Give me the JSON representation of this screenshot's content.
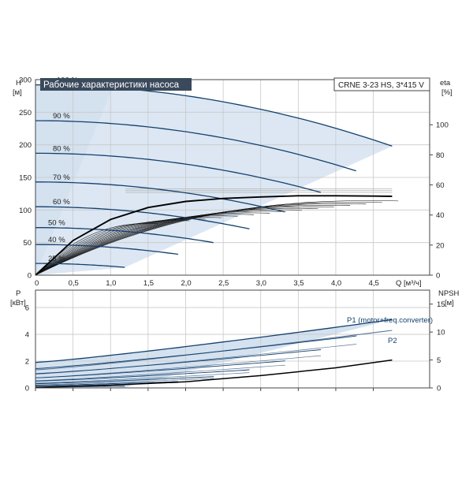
{
  "title": "Рабочие характеристики насоса",
  "model": "CRNE 3-23 HS, 3*415 V",
  "colors": {
    "navy": "#14406e",
    "band": "#c5d7ea",
    "title_bg": "#3a4a5c"
  },
  "chart_data": [
    {
      "type": "line",
      "name": "head",
      "ylabel_left": [
        "H",
        "[м]"
      ],
      "ylabel_right": [
        "eta",
        "[%]"
      ],
      "xlabel": "Q [м³/ч]",
      "xlim": [
        0,
        5.25
      ],
      "ylim": [
        0,
        300
      ],
      "ylim_right": [
        0,
        130
      ],
      "xticks": [
        0,
        0.5,
        1.0,
        1.5,
        2.0,
        2.5,
        3.0,
        3.5,
        4.0,
        4.5
      ],
      "xtick_labels": [
        "0",
        "0,5",
        "1,0",
        "1,5",
        "2,0",
        "2,5",
        "3,0",
        "3,5",
        "4,0",
        "4,5"
      ],
      "yticks": [
        0,
        50,
        100,
        150,
        200,
        250,
        300
      ],
      "yticks_right": [
        0,
        20,
        40,
        60,
        80,
        100
      ],
      "speed_curves": [
        {
          "label": "100 %",
          "H0": 292,
          "Qmax": 4.75,
          "Hend": 198
        },
        {
          "label": "90 %",
          "H0": 237,
          "Qmax": 4.27,
          "Hend": 160
        },
        {
          "label": "80 %",
          "H0": 187,
          "Qmax": 3.8,
          "Hend": 127
        },
        {
          "label": "70 %",
          "H0": 143,
          "Qmax": 3.32,
          "Hend": 97
        },
        {
          "label": "60 %",
          "H0": 105,
          "Qmax": 2.85,
          "Hend": 71
        },
        {
          "label": "50 %",
          "H0": 73,
          "Qmax": 2.37,
          "Hend": 50
        },
        {
          "label": "40 %",
          "H0": 47,
          "Qmax": 1.9,
          "Hend": 32
        },
        {
          "label": "25 %",
          "H0": 18,
          "Qmax": 1.19,
          "Hend": 12
        }
      ],
      "eta_curve": {
        "q": [
          0,
          0.5,
          1.0,
          1.5,
          2.0,
          2.5,
          3.0,
          3.5,
          4.0,
          4.5,
          4.75
        ],
        "eta": [
          0,
          23,
          37,
          45,
          49,
          51,
          52,
          52.8,
          52.8,
          52.6,
          52.4
        ]
      }
    },
    {
      "type": "line",
      "name": "power",
      "ylabel_left": [
        "P",
        "[кВт]"
      ],
      "ylabel_right": [
        "NPSH",
        "[м]"
      ],
      "xlim": [
        0,
        5.25
      ],
      "ylim": [
        0,
        7.3
      ],
      "ylim_right": [
        0,
        17.5
      ],
      "yticks": [
        0,
        2,
        4,
        6
      ],
      "yticks_right": [
        0,
        5,
        10,
        15
      ],
      "P1_curve": {
        "P0": 1.9,
        "Pend": 5.1,
        "label": "P1 (motor+freq.converter)"
      },
      "P2_curve": {
        "P0": 1.35,
        "Pend": 4.3,
        "label": "P2"
      },
      "npsh_curve": {
        "q": [
          0,
          1,
          2,
          3,
          4,
          4.75
        ],
        "npsh": [
          0.1,
          0.5,
          1.1,
          2.2,
          3.6,
          5.0
        ]
      }
    }
  ]
}
